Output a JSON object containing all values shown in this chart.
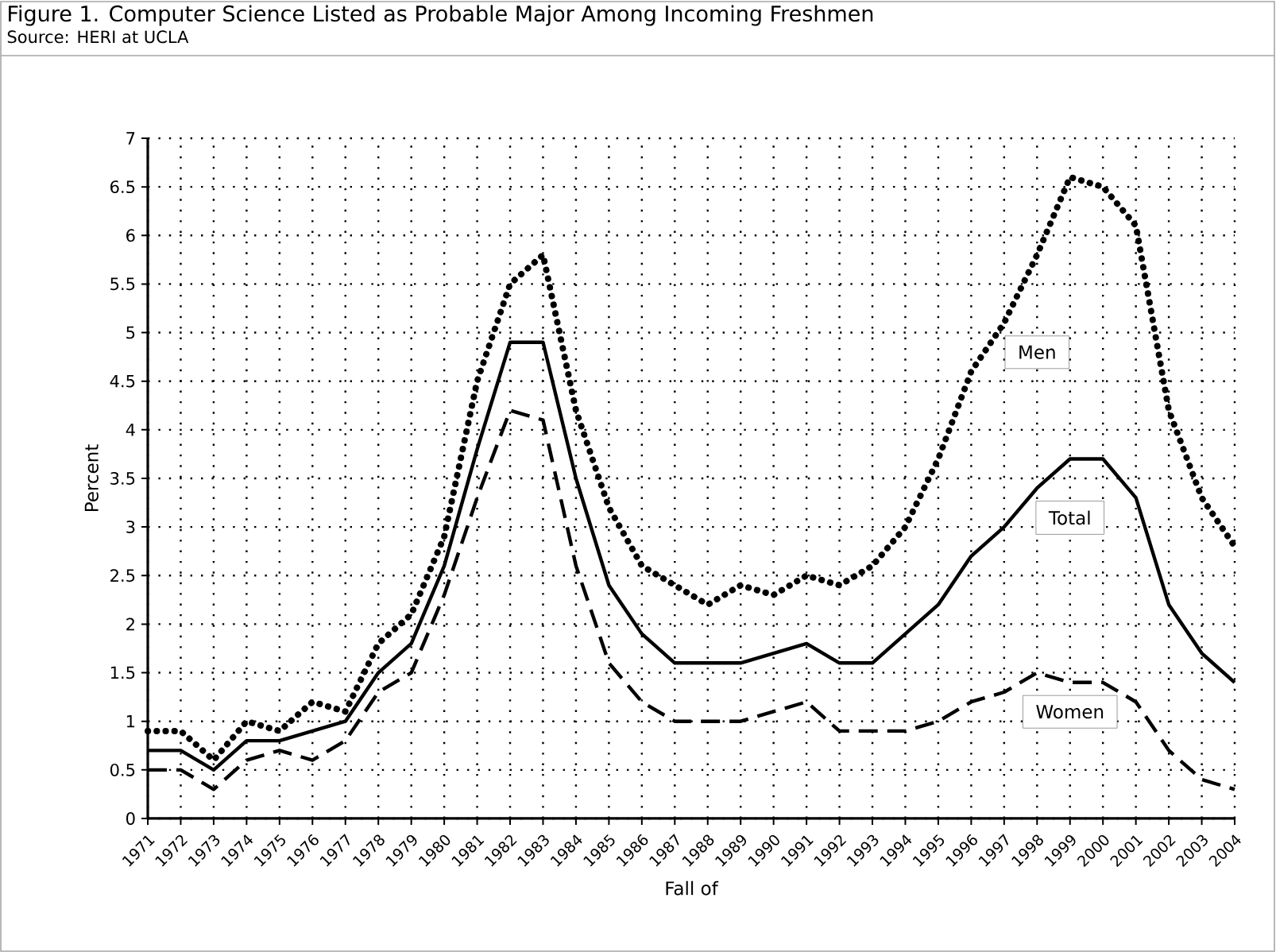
{
  "chart_data": {
    "type": "line",
    "title": "Figure 1. Computer Science Listed as Probable Major Among Incoming Freshmen",
    "subtitle": "Source: HERI at UCLA",
    "xlabel": "Fall of",
    "ylabel": "Percent",
    "x": [
      1971,
      1972,
      1973,
      1974,
      1975,
      1976,
      1977,
      1978,
      1979,
      1980,
      1981,
      1982,
      1983,
      1984,
      1985,
      1986,
      1987,
      1988,
      1989,
      1990,
      1991,
      1992,
      1993,
      1994,
      1995,
      1996,
      1997,
      1998,
      1999,
      2000,
      2001,
      2002,
      2003,
      2004
    ],
    "series": [
      {
        "name": "Men",
        "color": "#000000",
        "line_style": "dotted",
        "values": [
          0.9,
          0.9,
          0.6,
          1.0,
          0.9,
          1.2,
          1.1,
          1.8,
          2.1,
          2.9,
          4.5,
          5.5,
          5.8,
          4.2,
          3.2,
          2.6,
          2.4,
          2.2,
          2.4,
          2.3,
          2.5,
          2.4,
          2.6,
          3.0,
          3.7,
          4.6,
          5.1,
          5.8,
          6.6,
          6.5,
          6.1,
          4.2,
          3.3,
          2.8
        ]
      },
      {
        "name": "Total",
        "color": "#000000",
        "line_style": "solid",
        "values": [
          0.7,
          0.7,
          0.5,
          0.8,
          0.8,
          0.9,
          1.0,
          1.5,
          1.8,
          2.6,
          3.8,
          4.9,
          4.9,
          3.5,
          2.4,
          1.9,
          1.6,
          1.6,
          1.6,
          1.7,
          1.8,
          1.6,
          1.6,
          1.9,
          2.2,
          2.7,
          3.0,
          3.4,
          3.7,
          3.7,
          3.3,
          2.2,
          1.7,
          1.4
        ]
      },
      {
        "name": "Women",
        "color": "#000000",
        "line_style": "dashed",
        "values": [
          0.5,
          0.5,
          0.3,
          0.6,
          0.7,
          0.6,
          0.8,
          1.3,
          1.5,
          2.3,
          3.3,
          4.2,
          4.1,
          2.6,
          1.6,
          1.2,
          1.0,
          1.0,
          1.0,
          1.1,
          1.2,
          0.9,
          0.9,
          0.9,
          1.0,
          1.2,
          1.3,
          1.5,
          1.4,
          1.4,
          1.2,
          0.7,
          0.4,
          0.3
        ]
      }
    ],
    "xlim": [
      1971,
      2004
    ],
    "xticks": [
      1971,
      1972,
      1973,
      1974,
      1975,
      1976,
      1977,
      1978,
      1979,
      1980,
      1981,
      1982,
      1983,
      1984,
      1985,
      1986,
      1987,
      1988,
      1989,
      1990,
      1991,
      1992,
      1993,
      1994,
      1995,
      1996,
      1997,
      1998,
      1999,
      2000,
      2001,
      2002,
      2003,
      2004
    ],
    "ylim": [
      0,
      7
    ],
    "yticks": [
      0,
      0.5,
      1,
      1.5,
      2,
      2.5,
      3,
      3.5,
      4,
      4.5,
      5,
      5.5,
      6,
      6.5,
      7
    ],
    "grid": true,
    "legend": false,
    "marker": "none"
  }
}
